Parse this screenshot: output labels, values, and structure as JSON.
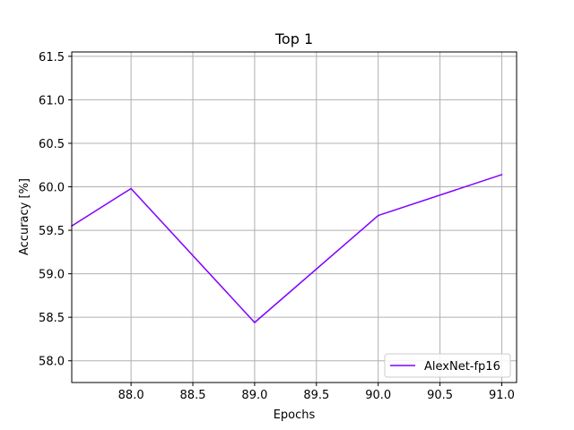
{
  "chart_data": {
    "type": "line",
    "title": "Top 1",
    "xlabel": "Epochs",
    "ylabel": "Accuracy [%]",
    "xlim": [
      87.52,
      91.12
    ],
    "ylim": [
      57.75,
      61.55
    ],
    "xticks": [
      "88.0",
      "88.5",
      "89.0",
      "89.5",
      "90.0",
      "90.5",
      "91.0"
    ],
    "yticks": [
      "58.0",
      "58.5",
      "59.0",
      "59.5",
      "60.0",
      "60.5",
      "61.0",
      "61.5"
    ],
    "grid": true,
    "legend_position": "lower-right",
    "series": [
      {
        "name": "AlexNet-fp16",
        "color": "#8000ff",
        "x": [
          87.52,
          88.0,
          89.0,
          90.0,
          91.0
        ],
        "y": [
          59.55,
          59.98,
          58.44,
          59.67,
          60.14
        ]
      }
    ]
  }
}
